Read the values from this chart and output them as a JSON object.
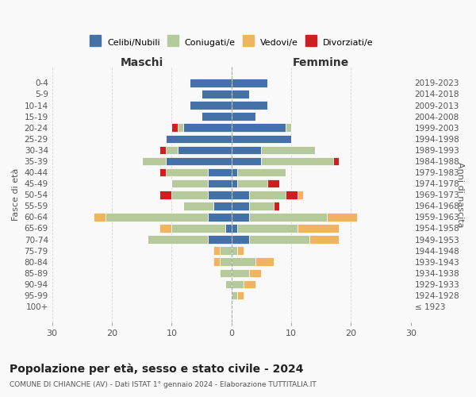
{
  "age_groups": [
    "100+",
    "95-99",
    "90-94",
    "85-89",
    "80-84",
    "75-79",
    "70-74",
    "65-69",
    "60-64",
    "55-59",
    "50-54",
    "45-49",
    "40-44",
    "35-39",
    "30-34",
    "25-29",
    "20-24",
    "15-19",
    "10-14",
    "5-9",
    "0-4"
  ],
  "birth_years": [
    "≤ 1923",
    "1924-1928",
    "1929-1933",
    "1934-1938",
    "1939-1943",
    "1944-1948",
    "1949-1953",
    "1954-1958",
    "1959-1963",
    "1964-1968",
    "1969-1973",
    "1974-1978",
    "1979-1983",
    "1984-1988",
    "1989-1993",
    "1994-1998",
    "1999-2003",
    "2004-2008",
    "2009-2013",
    "2014-2018",
    "2019-2023"
  ],
  "males": {
    "celibi": [
      0,
      0,
      0,
      0,
      0,
      0,
      4,
      1,
      4,
      3,
      4,
      4,
      4,
      11,
      9,
      11,
      8,
      5,
      7,
      5,
      7
    ],
    "coniugati": [
      0,
      0,
      1,
      2,
      2,
      2,
      10,
      9,
      17,
      5,
      6,
      6,
      7,
      4,
      2,
      0,
      1,
      0,
      0,
      0,
      0
    ],
    "vedovi": [
      0,
      0,
      0,
      0,
      1,
      1,
      0,
      2,
      2,
      0,
      0,
      0,
      0,
      0,
      0,
      0,
      0,
      0,
      0,
      0,
      0
    ],
    "divorziati": [
      0,
      0,
      0,
      0,
      0,
      0,
      0,
      0,
      0,
      0,
      2,
      0,
      1,
      0,
      1,
      0,
      1,
      0,
      0,
      0,
      0
    ]
  },
  "females": {
    "nubili": [
      0,
      0,
      0,
      0,
      0,
      0,
      3,
      1,
      3,
      3,
      3,
      1,
      1,
      5,
      5,
      10,
      9,
      4,
      6,
      3,
      6
    ],
    "coniugate": [
      0,
      1,
      2,
      3,
      4,
      1,
      10,
      10,
      13,
      4,
      6,
      5,
      8,
      12,
      9,
      0,
      1,
      0,
      0,
      0,
      0
    ],
    "vedove": [
      0,
      1,
      2,
      2,
      3,
      1,
      5,
      7,
      5,
      0,
      1,
      0,
      0,
      0,
      0,
      0,
      0,
      0,
      0,
      0,
      0
    ],
    "divorziate": [
      0,
      0,
      0,
      0,
      0,
      0,
      0,
      0,
      0,
      1,
      2,
      2,
      0,
      1,
      0,
      0,
      0,
      0,
      0,
      0,
      0
    ]
  },
  "colors": {
    "celibi": "#4472a8",
    "coniugati": "#b5c99a",
    "vedovi": "#f0b460",
    "divorziati": "#cc2020"
  },
  "title": "Popolazione per età, sesso e stato civile - 2024",
  "subtitle": "COMUNE DI CHIANCHE (AV) - Dati ISTAT 1° gennaio 2024 - Elaborazione TUTTITALIA.IT",
  "xlabel_left": "Maschi",
  "xlabel_right": "Femmine",
  "ylabel_left": "Fasce di età",
  "ylabel_right": "Anni di nascita",
  "xlim": 30,
  "bg_color": "#f9f9f9",
  "grid_color": "#cccccc"
}
